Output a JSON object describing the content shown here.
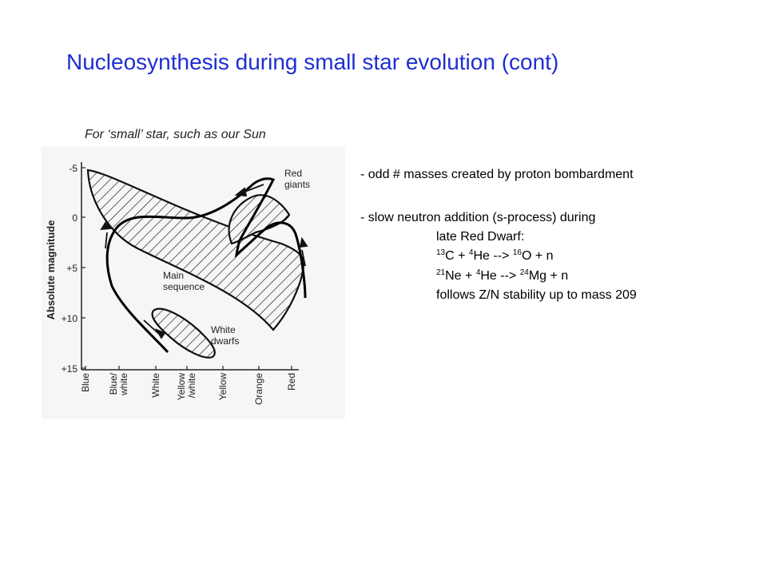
{
  "slide": {
    "title": "Nucleosynthesis during small star evolution (cont)",
    "caption": "For ‘small’ star, such as our Sun"
  },
  "diagram": {
    "y_axis_label": "Absolute magnitude",
    "y_ticks": [
      "-5",
      "0",
      "+5",
      "+10",
      "+15"
    ],
    "x_ticks": [
      "Blue",
      "Blue/\nwhite",
      "White",
      "Yellow\n/white",
      "Yellow",
      "Orange",
      "Red"
    ],
    "region_labels": {
      "red_giants": "Red\ngiants",
      "main_sequence": "Main\nsequence",
      "white_dwarfs": "White\ndwarfs"
    }
  },
  "notes": {
    "line1": "- odd # masses created by proton bombardment",
    "line2": "- slow neutron addition (s-process) during",
    "line3": "late Red Dwarf:",
    "r1": {
      "m1": "13",
      "e1": "C + ",
      "m2": "4",
      "e2": "He --> ",
      "m3": "16",
      "e3": "O + n"
    },
    "r2": {
      "m1": "21",
      "e1": "Ne + ",
      "m2": "4",
      "e2": "He --> ",
      "m3": "24",
      "e3": "Mg + n"
    },
    "line6": "follows Z/N stability up to mass 209"
  },
  "colors": {
    "title": "#1f2fd1",
    "text": "#000000",
    "panel": "#f6f6f6"
  }
}
